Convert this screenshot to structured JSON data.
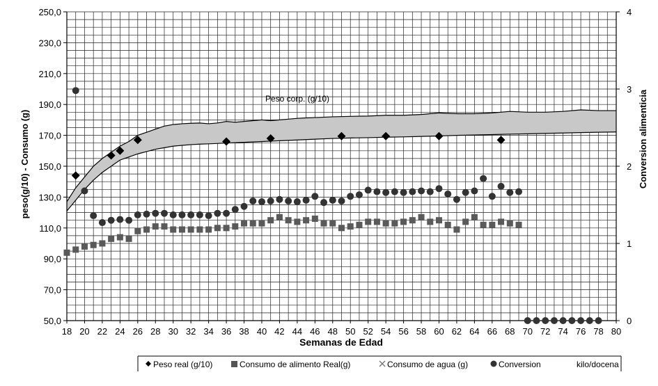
{
  "chart_data": {
    "type": "scatter",
    "title": "",
    "band_label": "Peso corp. (g/10)",
    "xlabel": "Semanas de Edad",
    "ylabel": "peso(g/10) - Consumo (g)",
    "y2label": "Conversion  alimenticia",
    "xlim": [
      18,
      80
    ],
    "ylim": [
      50,
      250
    ],
    "y2lim": [
      0,
      4
    ],
    "x_ticks": [
      18,
      20,
      22,
      24,
      26,
      28,
      30,
      32,
      34,
      36,
      38,
      40,
      42,
      44,
      46,
      48,
      50,
      52,
      54,
      56,
      58,
      60,
      62,
      64,
      66,
      68,
      70,
      72,
      74,
      76,
      78,
      80
    ],
    "y_ticks": [
      {
        "value": 50,
        "label": "50,0"
      },
      {
        "value": 70,
        "label": "70,0"
      },
      {
        "value": 90,
        "label": "90,0"
      },
      {
        "value": 110,
        "label": "110,0"
      },
      {
        "value": 130,
        "label": "130,0"
      },
      {
        "value": 150,
        "label": "150,0"
      },
      {
        "value": 170,
        "label": "170,0"
      },
      {
        "value": 190,
        "label": "190,0"
      },
      {
        "value": 210,
        "label": "210,0"
      },
      {
        "value": 230,
        "label": "230,0"
      },
      {
        "value": 250,
        "label": "250,0"
      }
    ],
    "y2_ticks": [
      {
        "value": 0,
        "label": "0"
      },
      {
        "value": 1,
        "label": "1"
      },
      {
        "value": 2,
        "label": "2"
      },
      {
        "value": 3,
        "label": "3"
      },
      {
        "value": 4,
        "label": "4"
      }
    ],
    "grid": true,
    "legend_position": "bottom-right",
    "band": {
      "name": "Peso corp. (g/10)",
      "upper": [
        [
          18,
          127
        ],
        [
          19,
          136
        ],
        [
          20,
          143
        ],
        [
          21,
          150
        ],
        [
          22,
          155
        ],
        [
          23,
          159
        ],
        [
          24,
          163
        ],
        [
          25,
          166
        ],
        [
          26,
          170
        ],
        [
          27,
          172
        ],
        [
          28,
          174
        ],
        [
          29,
          176
        ],
        [
          30,
          177
        ],
        [
          31,
          177.5
        ],
        [
          32,
          177.8
        ],
        [
          33,
          178
        ],
        [
          34,
          177.5
        ],
        [
          35,
          178
        ],
        [
          36,
          179
        ],
        [
          37,
          178.5
        ],
        [
          38,
          179
        ],
        [
          39,
          179.5
        ],
        [
          40,
          180
        ],
        [
          41,
          179.5
        ],
        [
          42,
          180
        ],
        [
          43,
          180.5
        ],
        [
          44,
          181
        ],
        [
          45,
          181.3
        ],
        [
          46,
          181.5
        ],
        [
          48,
          182
        ],
        [
          50,
          182.3
        ],
        [
          52,
          182.5
        ],
        [
          54,
          183
        ],
        [
          56,
          183
        ],
        [
          58,
          183.5
        ],
        [
          60,
          184.5
        ],
        [
          62,
          184
        ],
        [
          64,
          184
        ],
        [
          66,
          184.5
        ],
        [
          68,
          185.5
        ],
        [
          70,
          185
        ],
        [
          72,
          185
        ],
        [
          74,
          185.5
        ],
        [
          76,
          186.5
        ],
        [
          78,
          186
        ],
        [
          80,
          186
        ]
      ],
      "lower": [
        [
          18,
          121
        ],
        [
          19,
          128
        ],
        [
          20,
          135
        ],
        [
          21,
          141
        ],
        [
          22,
          146
        ],
        [
          23,
          150
        ],
        [
          24,
          154
        ],
        [
          25,
          156
        ],
        [
          26,
          158
        ],
        [
          27,
          159.5
        ],
        [
          28,
          161
        ],
        [
          29,
          162
        ],
        [
          30,
          163
        ],
        [
          31,
          163.5
        ],
        [
          32,
          164
        ],
        [
          33,
          164.3
        ],
        [
          34,
          164.5
        ],
        [
          36,
          165
        ],
        [
          38,
          165.5
        ],
        [
          40,
          166
        ],
        [
          42,
          166.5
        ],
        [
          44,
          167
        ],
        [
          46,
          167.5
        ],
        [
          48,
          168
        ],
        [
          50,
          168.3
        ],
        [
          52,
          168.5
        ],
        [
          54,
          168.8
        ],
        [
          56,
          169
        ],
        [
          58,
          169.3
        ],
        [
          60,
          169.6
        ],
        [
          62,
          170
        ],
        [
          64,
          170.2
        ],
        [
          66,
          170.5
        ],
        [
          68,
          170.8
        ],
        [
          70,
          171
        ],
        [
          72,
          171.3
        ],
        [
          74,
          171.5
        ],
        [
          76,
          171.8
        ],
        [
          78,
          172
        ],
        [
          80,
          172.2
        ]
      ]
    },
    "series": [
      {
        "name": "Peso real (g/10)",
        "marker": "diamond",
        "axis": "left",
        "points": [
          [
            19,
            144
          ],
          [
            23,
            157
          ],
          [
            24,
            160
          ],
          [
            26,
            167
          ],
          [
            36,
            166
          ],
          [
            41,
            168
          ],
          [
            49,
            169.5
          ],
          [
            54,
            169.5
          ],
          [
            60,
            169.5
          ],
          [
            67,
            167
          ]
        ]
      },
      {
        "name": "Consumo de alimento Real(g)",
        "marker": "square",
        "axis": "left",
        "points": [
          [
            18,
            94
          ],
          [
            19,
            96
          ],
          [
            20,
            98
          ],
          [
            21,
            99
          ],
          [
            22,
            100
          ],
          [
            23,
            103
          ],
          [
            24,
            104
          ],
          [
            25,
            103
          ],
          [
            26,
            108
          ],
          [
            27,
            109
          ],
          [
            28,
            111
          ],
          [
            29,
            111
          ],
          [
            30,
            109
          ],
          [
            31,
            109
          ],
          [
            32,
            109
          ],
          [
            33,
            109
          ],
          [
            34,
            109
          ],
          [
            35,
            110
          ],
          [
            36,
            110
          ],
          [
            37,
            111
          ],
          [
            38,
            113
          ],
          [
            39,
            113
          ],
          [
            40,
            113
          ],
          [
            41,
            115
          ],
          [
            42,
            117
          ],
          [
            43,
            115
          ],
          [
            44,
            114
          ],
          [
            45,
            115
          ],
          [
            46,
            116
          ],
          [
            47,
            113
          ],
          [
            48,
            113
          ],
          [
            49,
            110
          ],
          [
            50,
            111
          ],
          [
            51,
            112
          ],
          [
            52,
            114
          ],
          [
            53,
            114
          ],
          [
            54,
            113
          ],
          [
            55,
            113
          ],
          [
            56,
            114
          ],
          [
            57,
            115
          ],
          [
            58,
            117
          ],
          [
            59,
            114
          ],
          [
            60,
            115
          ],
          [
            61,
            112
          ],
          [
            62,
            109
          ],
          [
            63,
            114
          ],
          [
            64,
            117
          ],
          [
            65,
            112
          ],
          [
            66,
            112
          ],
          [
            67,
            114
          ],
          [
            68,
            113
          ],
          [
            69,
            112
          ]
        ]
      },
      {
        "name": "Consumo de agua (g)",
        "marker": "cross",
        "axis": "left",
        "points": []
      },
      {
        "name": "Conversion",
        "marker": "circle",
        "axis": "right",
        "points": [
          [
            19,
            2.98
          ],
          [
            20,
            1.68
          ],
          [
            21,
            1.36
          ],
          [
            22,
            1.27
          ],
          [
            23,
            1.3
          ],
          [
            24,
            1.31
          ],
          [
            25,
            1.3
          ],
          [
            26,
            1.37
          ],
          [
            27,
            1.38
          ],
          [
            28,
            1.39
          ],
          [
            29,
            1.39
          ],
          [
            30,
            1.37
          ],
          [
            31,
            1.37
          ],
          [
            32,
            1.37
          ],
          [
            33,
            1.37
          ],
          [
            34,
            1.36
          ],
          [
            35,
            1.39
          ],
          [
            36,
            1.39
          ],
          [
            37,
            1.44
          ],
          [
            38,
            1.48
          ],
          [
            39,
            1.55
          ],
          [
            40,
            1.54
          ],
          [
            41,
            1.55
          ],
          [
            42,
            1.57
          ],
          [
            43,
            1.55
          ],
          [
            44,
            1.54
          ],
          [
            45,
            1.56
          ],
          [
            46,
            1.61
          ],
          [
            47,
            1.53
          ],
          [
            48,
            1.56
          ],
          [
            49,
            1.55
          ],
          [
            50,
            1.61
          ],
          [
            51,
            1.63
          ],
          [
            52,
            1.69
          ],
          [
            53,
            1.67
          ],
          [
            54,
            1.66
          ],
          [
            55,
            1.67
          ],
          [
            56,
            1.66
          ],
          [
            57,
            1.67
          ],
          [
            58,
            1.68
          ],
          [
            59,
            1.67
          ],
          [
            60,
            1.71
          ],
          [
            61,
            1.64
          ],
          [
            62,
            1.57
          ],
          [
            63,
            1.66
          ],
          [
            64,
            1.68
          ],
          [
            65,
            1.84
          ],
          [
            66,
            1.61
          ],
          [
            67,
            1.74
          ],
          [
            68,
            1.66
          ],
          [
            69,
            1.67
          ],
          [
            70,
            0
          ],
          [
            71,
            0
          ],
          [
            72,
            0
          ],
          [
            73,
            0
          ],
          [
            74,
            0
          ],
          [
            75,
            0
          ],
          [
            76,
            0
          ],
          [
            77,
            0
          ],
          [
            78,
            0
          ]
        ]
      }
    ],
    "legend_extra": "kilo/docena"
  }
}
